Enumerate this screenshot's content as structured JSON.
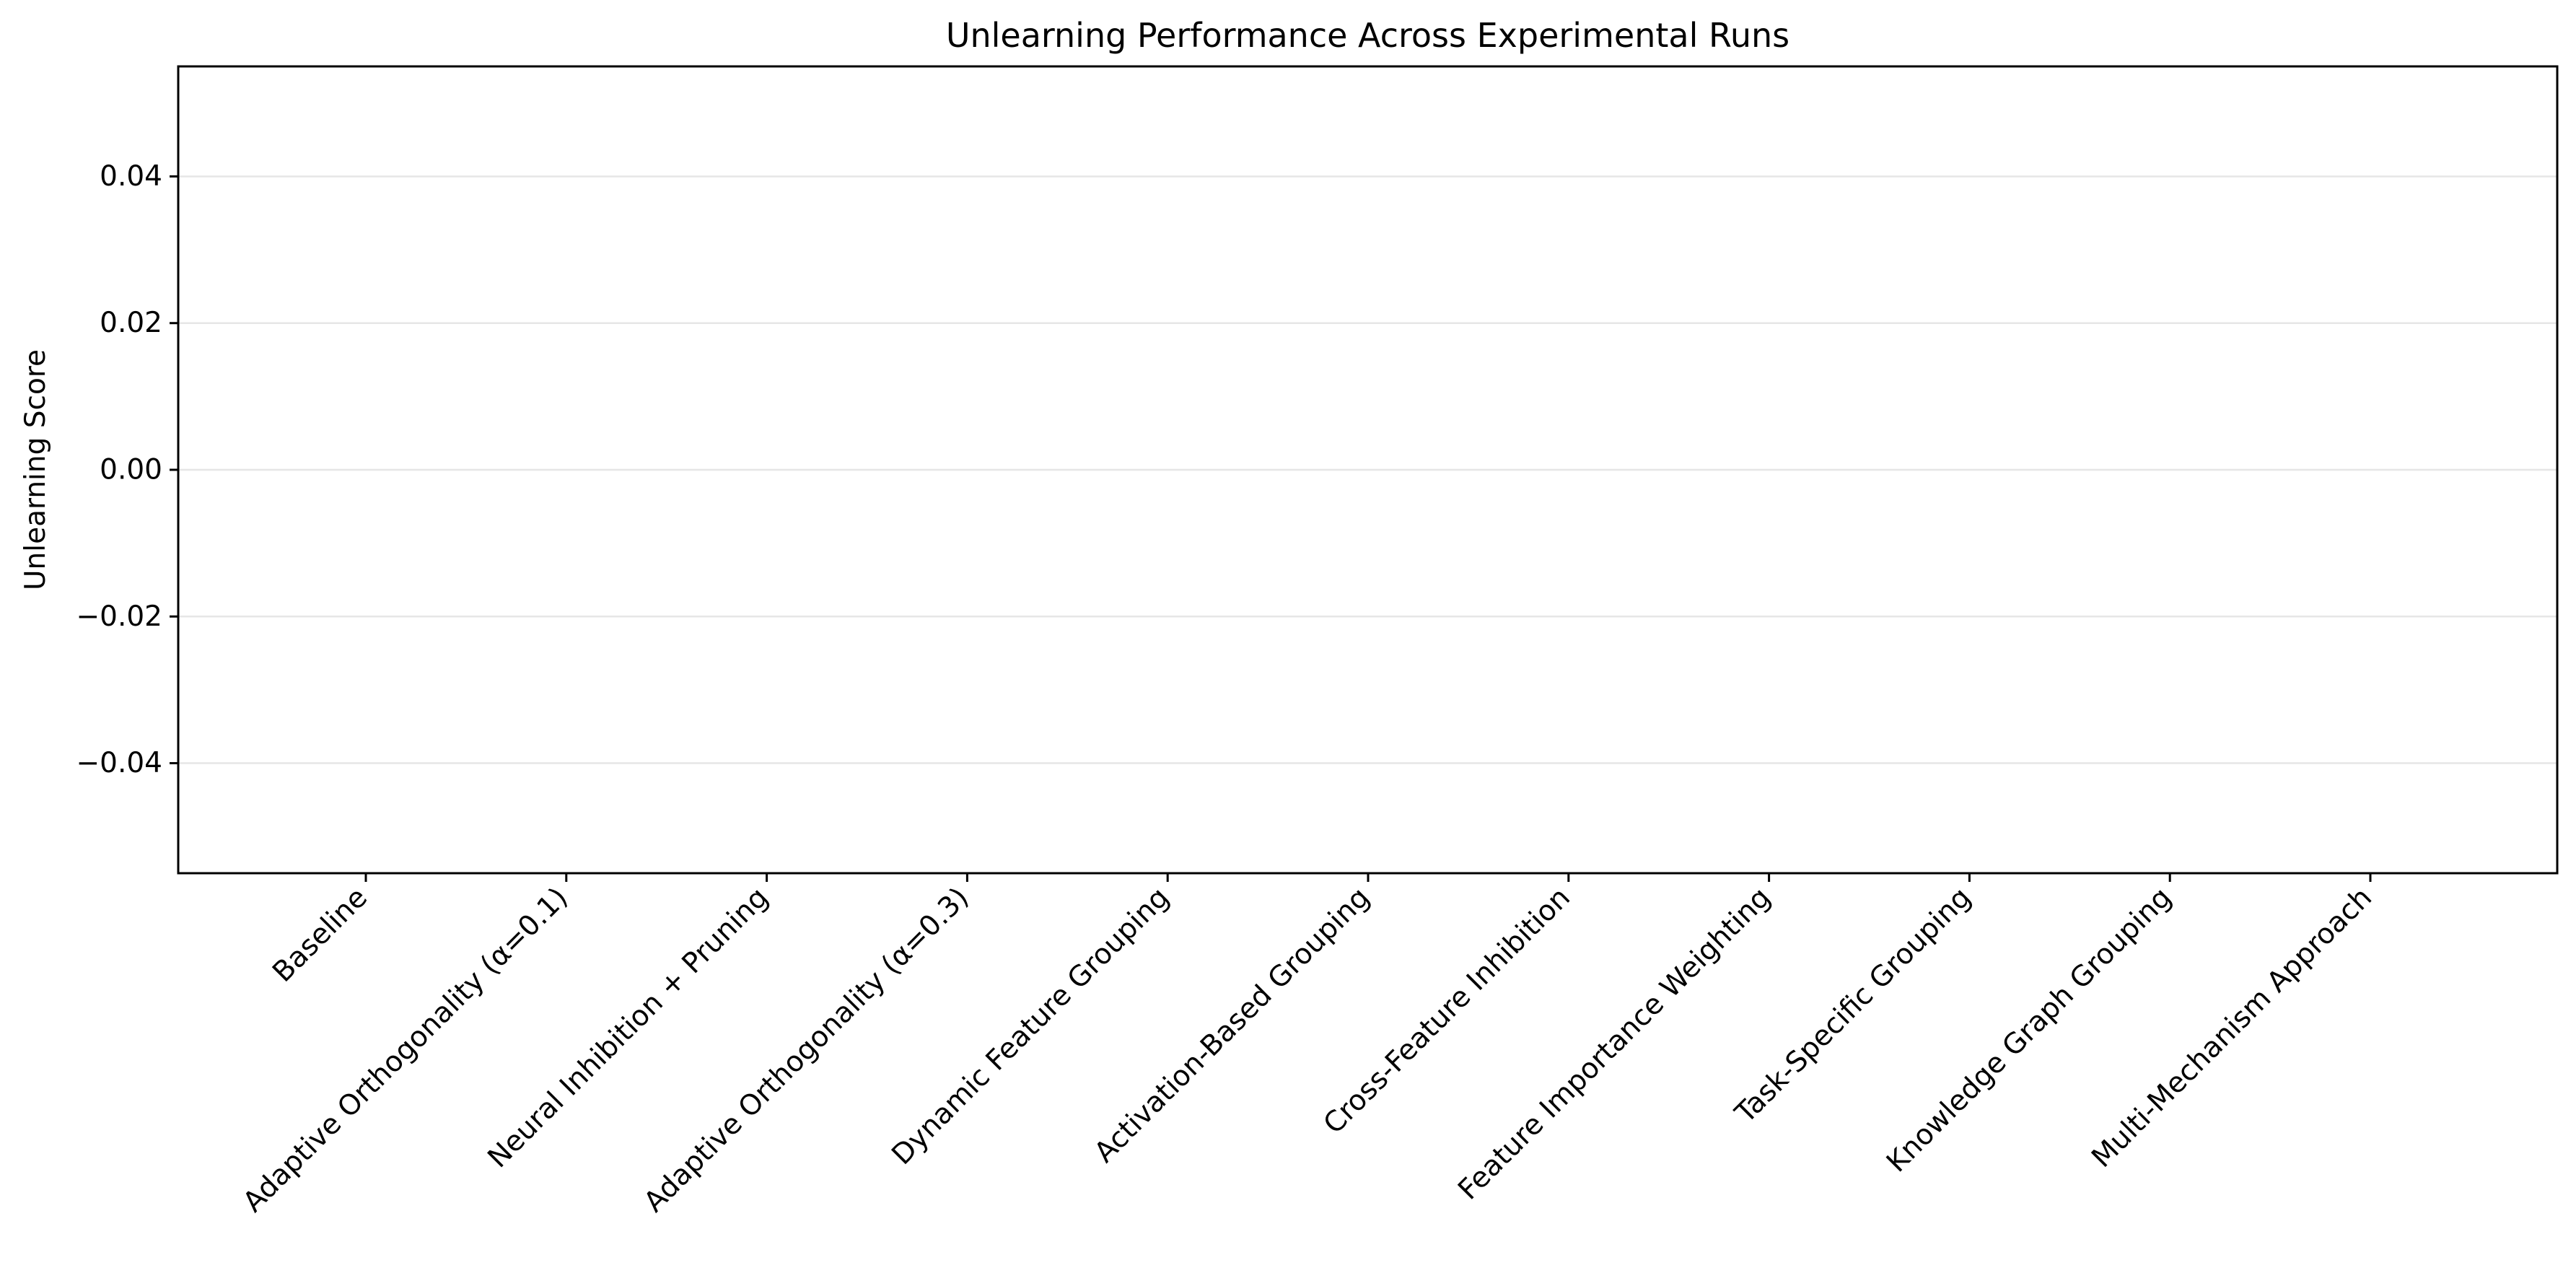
{
  "chart_data": {
    "type": "bar",
    "title": "Unlearning Performance Across Experimental Runs",
    "xlabel": "",
    "ylabel": "Unlearning Score",
    "categories": [
      "Baseline",
      "Adaptive Orthogonality (α=0.1)",
      "Neural Inhibition + Pruning",
      "Adaptive Orthogonality (α=0.3)",
      "Dynamic Feature Grouping",
      "Activation-Based Grouping",
      "Cross-Feature Inhibition",
      "Feature Importance Weighting",
      "Task-Specific Grouping",
      "Knowledge Graph Grouping",
      "Multi-Mechanism Approach"
    ],
    "values": [
      0,
      0,
      0,
      0,
      0,
      0,
      0,
      0,
      0,
      0,
      0
    ],
    "ylim": [
      -0.055,
      0.055
    ],
    "yticks": [
      -0.04,
      -0.02,
      0.0,
      0.02,
      0.04
    ],
    "ytick_labels": [
      "−0.04",
      "−0.02",
      "0.00",
      "0.02",
      "0.04"
    ],
    "grid": "horizontal",
    "legend": "none",
    "colors": {
      "grid": "#e6e6e6",
      "axis": "#000000"
    }
  }
}
